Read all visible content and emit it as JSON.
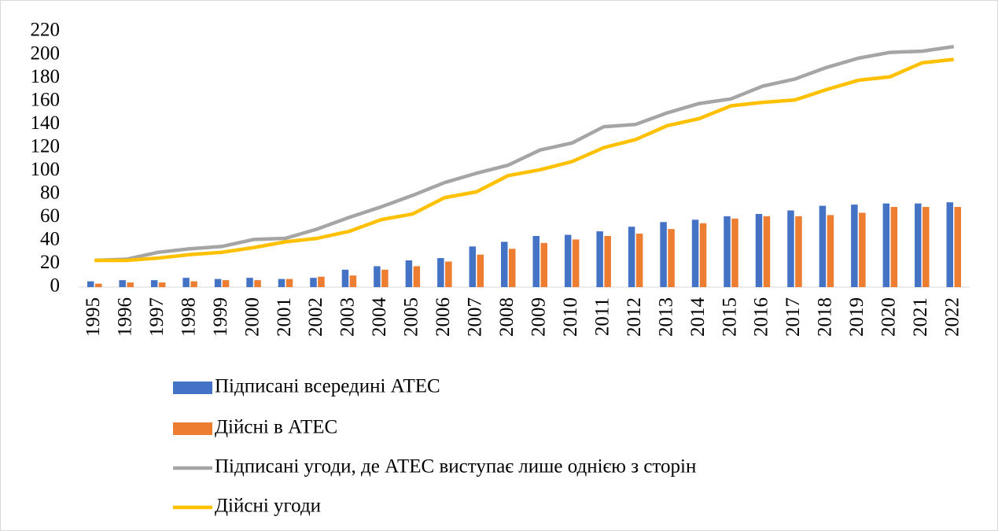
{
  "chart_data": {
    "type": "combo",
    "categories": [
      "1995",
      "1996",
      "1997",
      "1998",
      "1999",
      "2000",
      "2001",
      "2002",
      "2003",
      "2004",
      "2005",
      "2006",
      "2007",
      "2008",
      "2009",
      "2010",
      "2011",
      "2012",
      "2013",
      "2014",
      "2015",
      "2016",
      "2017",
      "2018",
      "2019",
      "2020",
      "2021",
      "2022"
    ],
    "series": [
      {
        "name": "Підписані всередині АТЕС",
        "type": "bar",
        "color": "#4472c4",
        "values": [
          5,
          6,
          6,
          8,
          7,
          8,
          7,
          8,
          15,
          18,
          23,
          25,
          35,
          39,
          44,
          45,
          48,
          52,
          56,
          58,
          61,
          63,
          66,
          70,
          71,
          72,
          72,
          73
        ]
      },
      {
        "name": "Дійсні в АТЕС",
        "type": "bar",
        "color": "#ed7d31",
        "values": [
          3,
          4,
          4,
          5,
          6,
          6,
          7,
          9,
          10,
          15,
          18,
          22,
          28,
          33,
          38,
          41,
          44,
          46,
          50,
          55,
          59,
          61,
          61,
          62,
          64,
          69,
          69,
          69
        ]
      },
      {
        "name": "Підписані угоди, де АТЕС виступає лише однією з сторін",
        "type": "line",
        "color": "#a5a5a5",
        "values": [
          23,
          24,
          30,
          33,
          35,
          41,
          42,
          50,
          60,
          69,
          79,
          90,
          98,
          105,
          118,
          124,
          138,
          140,
          150,
          158,
          162,
          173,
          179,
          189,
          197,
          202,
          203,
          207
        ]
      },
      {
        "name": "Дійсні угоди",
        "type": "line",
        "color": "#ffc000",
        "values": [
          23,
          23,
          25,
          28,
          30,
          34,
          39,
          42,
          48,
          58,
          63,
          77,
          82,
          96,
          101,
          108,
          120,
          127,
          139,
          145,
          156,
          159,
          161,
          170,
          178,
          181,
          193,
          196
        ]
      }
    ],
    "ylim": [
      0,
      220
    ],
    "yticks": [
      0,
      20,
      40,
      60,
      80,
      100,
      120,
      140,
      160,
      180,
      200,
      220
    ],
    "grid": false,
    "legend": "bottom"
  }
}
